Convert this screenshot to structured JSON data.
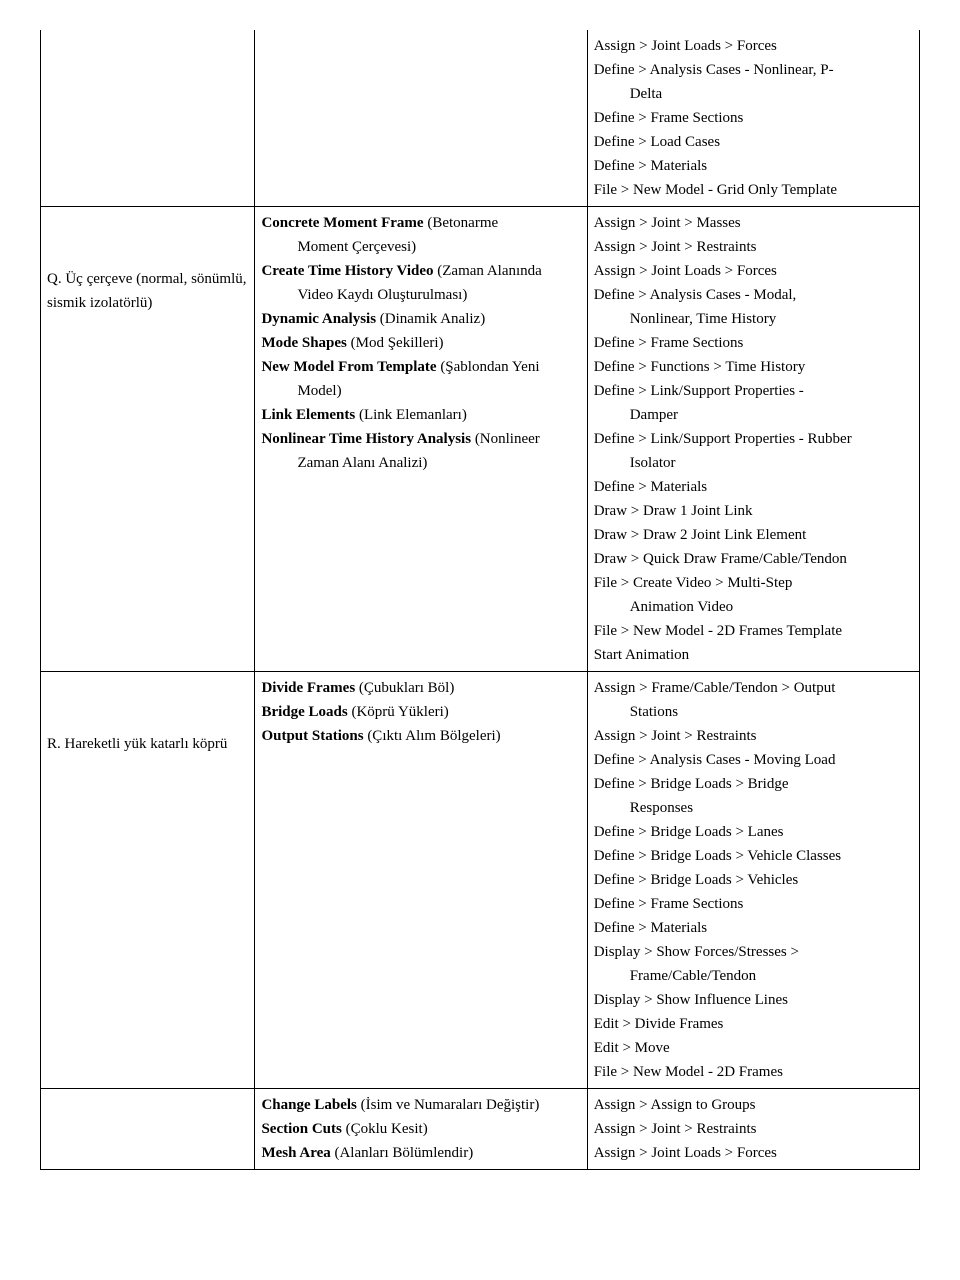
{
  "row0": {
    "col3": [
      {
        "text": "Assign > Joint Loads > Forces"
      },
      {
        "text": "Define > Analysis Cases - Nonlinear, P-"
      },
      {
        "text": "Delta",
        "indent": true
      },
      {
        "text": "Define > Frame Sections"
      },
      {
        "text": "Define > Load Cases"
      },
      {
        "text": "Define > Materials"
      },
      {
        "text": "File > New Model - Grid Only Template"
      }
    ]
  },
  "row1": {
    "col1": "Q. Üç çerçeve (normal, sönümlü, sismik izolatörlü)",
    "col2": [
      {
        "bold": "Concrete Moment Frame",
        "rest": " (Betonarme"
      },
      {
        "text": "Moment Çerçevesi)",
        "indent": true
      },
      {
        "bold": "Create Time History Video",
        "rest": " (Zaman Alanında"
      },
      {
        "text": "Video Kaydı Oluşturulması)",
        "indent": true
      },
      {
        "bold": "Dynamic Analysis",
        "rest": " (Dinamik Analiz)"
      },
      {
        "bold": "Mode Shapes",
        "rest": " (Mod Şekilleri)"
      },
      {
        "bold": "New Model From Template",
        "rest": " (Şablondan Yeni"
      },
      {
        "text": "Model)",
        "indent": true
      },
      {
        "bold": "Link Elements",
        "rest": " (Link Elemanları)"
      },
      {
        "bold": "Nonlinear Time History Analysis",
        "rest": " (Nonlineer"
      },
      {
        "text": "Zaman Alanı Analizi)",
        "indent": true
      }
    ],
    "col3": [
      {
        "text": "Assign > Joint > Masses"
      },
      {
        "text": "Assign > Joint > Restraints"
      },
      {
        "text": "Assign > Joint Loads > Forces"
      },
      {
        "text": "Define > Analysis Cases - Modal,"
      },
      {
        "text": "Nonlinear, Time History",
        "indent": true
      },
      {
        "text": "Define > Frame Sections"
      },
      {
        "text": "Define > Functions > Time History"
      },
      {
        "text": "Define > Link/Support Properties -"
      },
      {
        "text": "Damper",
        "indent": true
      },
      {
        "text": "Define > Link/Support Properties - Rubber"
      },
      {
        "text": "Isolator",
        "indent": true
      },
      {
        "text": "Define > Materials"
      },
      {
        "text": "Draw > Draw 1 Joint Link"
      },
      {
        "text": "Draw > Draw 2 Joint Link Element"
      },
      {
        "text": "Draw > Quick Draw Frame/Cable/Tendon"
      },
      {
        "text": "File > Create Video > Multi-Step"
      },
      {
        "text": "Animation Video",
        "indent": true
      },
      {
        "text": "File > New Model - 2D Frames Template"
      },
      {
        "text": "Start Animation"
      }
    ]
  },
  "row2": {
    "col1": "R. Hareketli yük katarlı köprü",
    "col2": [
      {
        "bold": "Divide Frames",
        "rest": " (Çubukları Böl)"
      },
      {
        "bold": "Bridge Loads",
        "rest": " (Köprü Yükleri)"
      },
      {
        "bold": "Output Stations",
        "rest": " (Çıktı Alım Bölgeleri)"
      }
    ],
    "col3": [
      {
        "text": "Assign > Frame/Cable/Tendon > Output"
      },
      {
        "text": "Stations",
        "indent": true
      },
      {
        "text": "Assign > Joint > Restraints"
      },
      {
        "text": "Define > Analysis Cases - Moving Load"
      },
      {
        "text": "Define > Bridge Loads > Bridge"
      },
      {
        "text": "Responses",
        "indent": true
      },
      {
        "text": "Define > Bridge Loads > Lanes"
      },
      {
        "text": "Define > Bridge Loads > Vehicle Classes"
      },
      {
        "text": "Define > Bridge Loads > Vehicles"
      },
      {
        "text": "Define > Frame Sections"
      },
      {
        "text": "Define > Materials"
      },
      {
        "text": "Display > Show Forces/Stresses >"
      },
      {
        "text": "Frame/Cable/Tendon",
        "indent": true
      },
      {
        "text": "Display > Show Influence Lines"
      },
      {
        "text": "Edit > Divide Frames"
      },
      {
        "text": "Edit > Move"
      },
      {
        "text": "File > New Model - 2D Frames"
      }
    ]
  },
  "row3": {
    "col2": [
      {
        "bold": "Change Labels",
        "rest": " (İsim ve Numaraları Değiştir)"
      },
      {
        "bold": "Section Cuts",
        "rest": " (Çoklu Kesit)"
      },
      {
        "bold": "Mesh Area",
        "rest": " (Alanları Bölümlendir)"
      }
    ],
    "col3": [
      {
        "text": "Assign > Assign to Groups"
      },
      {
        "text": "Assign > Joint > Restraints"
      },
      {
        "text": "Assign > Joint Loads > Forces"
      }
    ]
  }
}
